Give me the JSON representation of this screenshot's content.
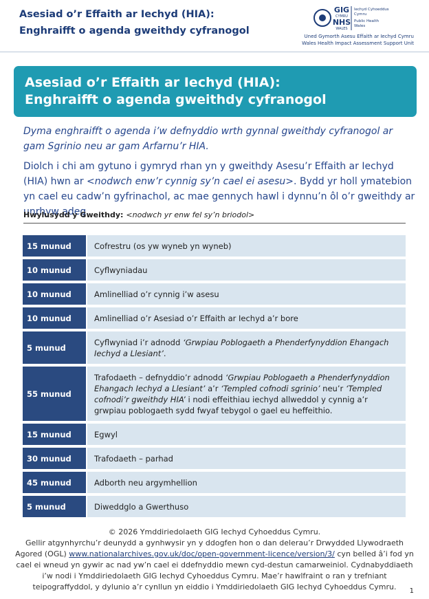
{
  "header": {
    "title_line1": "Asesiad o’r Effaith ar Iechyd (HIA):",
    "title_line2": "Enghraifft o agenda gweithdy cyfranogol",
    "logo": {
      "gig": "GIG",
      "cymru": "CYMRU",
      "nhs": "NHS",
      "wales": "WALES",
      "org_cy_1": "Iechyd Cyhoeddus",
      "org_cy_2": "Cymru",
      "org_en_1": "Public Health",
      "org_en_2": "Wales"
    },
    "unit_cy": "Uned Gymorth Asesu Effaith ar Iechyd Cymru",
    "unit_en": "Wales Health Impact Assessment Support Unit"
  },
  "banner": {
    "line1": "Asesiad o’r Effaith ar Iechyd (HIA):",
    "line2": "Enghraifft o agenda gweithdy cyfranogol"
  },
  "intro": {
    "lead": "Dyma enghraifft o agenda i’w defnyddio wrth gynnal gweithdy cyfranogol ar gam Sgrinio neu ar gam Arfarnu’r HIA.",
    "body": [
      {
        "text": "Diolch i chi am gytuno i gymryd rhan yn y gweithdy Asesu’r Effaith ar Iechyd (HIA) hwn ar "
      },
      {
        "text": "<nodwch enw’r cynnig sy’n cael ei asesu>",
        "italic": true
      },
      {
        "text": ". Bydd yr holl ymatebion yn cael eu cadw’n gyfrinachol, ac mae gennych hawl i dynnu’n ôl o’r gweithdy ar unrhyw adeg."
      }
    ]
  },
  "facilitator": {
    "label": "Hwylusydd y Gweithdy:",
    "value": "<nodwch yr enw fel sy’n briodol>"
  },
  "table": {
    "rows": [
      {
        "time": "15 munud",
        "parts": [
          {
            "text": "Cofrestru (os yw wyneb yn wyneb)"
          }
        ]
      },
      {
        "time": "10 munud",
        "parts": [
          {
            "text": "Cyflwyniadau"
          }
        ]
      },
      {
        "time": "10 munud",
        "parts": [
          {
            "text": "Amlinelliad o’r cynnig i’w asesu"
          }
        ]
      },
      {
        "time": "10 munud",
        "parts": [
          {
            "text": "Amlinelliad o’r Asesiad o’r Effaith ar Iechyd a’r bore"
          }
        ]
      },
      {
        "time": "5 munud",
        "parts": [
          {
            "text": "Cyflwyniad i’r adnodd "
          },
          {
            "text": "‘Grwpiau Poblogaeth a Phenderfynyddion Ehangach Iechyd a Llesiant’",
            "italic": true
          },
          {
            "text": "."
          }
        ]
      },
      {
        "time": "55 munud",
        "parts": [
          {
            "text": "Trafodaeth – defnyddio’r adnodd "
          },
          {
            "text": "‘Grwpiau Poblogaeth a Phenderfynyddion Ehangach Iechyd a Llesiant’",
            "italic": true
          },
          {
            "text": " a’r "
          },
          {
            "text": "‘Templed cofnodi sgrinio’",
            "italic": true
          },
          {
            "text": " neu’r "
          },
          {
            "text": "‘Templed cofnodi’r gweithdy HIA’",
            "italic": true
          },
          {
            "text": " i nodi effeithiau iechyd allweddol y cynnig a’r grwpiau poblogaeth sydd fwyaf tebygol o gael eu heffeithio."
          }
        ]
      },
      {
        "time": "15 munud",
        "parts": [
          {
            "text": "Egwyl"
          }
        ]
      },
      {
        "time": "30 munud",
        "parts": [
          {
            "text": "Trafodaeth – parhad"
          }
        ]
      },
      {
        "time": "45 munud",
        "parts": [
          {
            "text": "Adborth neu argymhellion"
          }
        ]
      },
      {
        "time": "5 munud",
        "parts": [
          {
            "text": "Diweddglo a Gwerthuso"
          }
        ]
      }
    ]
  },
  "footer": {
    "copyright": "© 2026 Ymddiriedolaeth GIG Iechyd Cyhoeddus Cymru.",
    "licence": [
      {
        "text": "Gellir atgynhyrchu’r deunydd a gynhwysir yn y ddogfen hon o dan delerau’r Drwydded Llywodraeth Agored (OGL) "
      },
      {
        "text": "www.nationalarchives.gov.uk/doc/open-government-licence/version/3/",
        "link": true
      },
      {
        "text": " cyn belled â’i fod yn cael ei wneud yn gywir ac nad yw’n cael ei ddefnyddio mewn cyd-destun camarweiniol. Cydnabyddiaeth i’w nodi i Ymddiriedolaeth GIG Iechyd Cyhoeddus Cymru. Mae’r hawlfraint o ran y trefniant teipograffyddol, y dylunio a’r cynllun yn eiddio i Ymddiriedolaeth GIG Iechyd Cyhoeddus Cymru."
      }
    ],
    "page": "1"
  }
}
